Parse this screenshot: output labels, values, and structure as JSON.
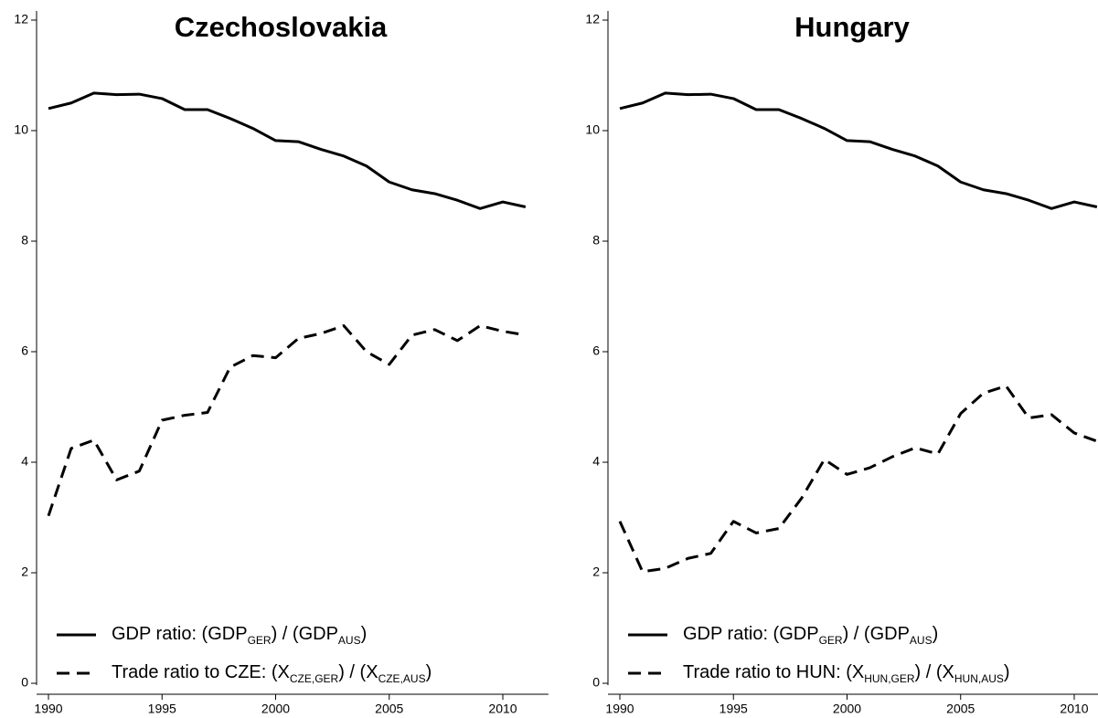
{
  "chart_data": [
    {
      "type": "line",
      "title": "Czechoslovakia",
      "x": [
        1990,
        1991,
        1992,
        1993,
        1994,
        1995,
        1996,
        1997,
        1998,
        1999,
        2000,
        2001,
        2002,
        2003,
        2004,
        2005,
        2006,
        2007,
        2008,
        2009,
        2010,
        2011
      ],
      "series": [
        {
          "name": "GDP ratio:  (GDP_{GER}) / (GDP_{AUS})",
          "color": "#000000",
          "dash": "solid",
          "values": [
            10.4,
            10.5,
            10.68,
            10.65,
            10.66,
            10.58,
            10.38,
            10.38,
            10.22,
            10.04,
            9.82,
            9.8,
            9.66,
            9.54,
            9.36,
            9.07,
            8.93,
            8.86,
            8.74,
            8.59,
            8.71,
            8.62
          ]
        },
        {
          "name": "Trade ratio to CZE:  (X_{CZE,GER}) / (X_{CZE,AUS})",
          "color": "#000000",
          "dash": "dashed",
          "values": [
            3.03,
            4.25,
            4.4,
            3.68,
            3.84,
            4.76,
            4.85,
            4.9,
            5.72,
            5.93,
            5.89,
            6.24,
            6.33,
            6.47,
            6.0,
            5.77,
            6.3,
            6.4,
            6.2,
            6.47,
            6.37,
            6.3
          ]
        }
      ],
      "xlim": [
        1990,
        2011
      ],
      "xticks": [
        1990,
        1995,
        2000,
        2005,
        2010
      ],
      "ylim": [
        0,
        12
      ],
      "yticks": [
        0,
        2,
        4,
        6,
        8,
        10,
        12
      ],
      "legend": "lower left"
    },
    {
      "type": "line",
      "title": "Hungary",
      "x": [
        1990,
        1991,
        1992,
        1993,
        1994,
        1995,
        1996,
        1997,
        1998,
        1999,
        2000,
        2001,
        2002,
        2003,
        2004,
        2005,
        2006,
        2007,
        2008,
        2009,
        2010,
        2011
      ],
      "series": [
        {
          "name": "GDP ratio:  (GDP_{GER}) / (GDP_{AUS})",
          "color": "#000000",
          "dash": "solid",
          "values": [
            10.4,
            10.5,
            10.68,
            10.65,
            10.66,
            10.58,
            10.38,
            10.38,
            10.22,
            10.04,
            9.82,
            9.8,
            9.66,
            9.54,
            9.36,
            9.07,
            8.93,
            8.86,
            8.74,
            8.59,
            8.71,
            8.62
          ]
        },
        {
          "name": "Trade ratio to HUN:  (X_{HUN,GER}) / (X_{HUN,AUS})",
          "color": "#000000",
          "dash": "dashed",
          "values": [
            2.93,
            2.02,
            2.08,
            2.26,
            2.35,
            2.93,
            2.72,
            2.8,
            3.35,
            4.05,
            3.78,
            3.9,
            4.1,
            4.26,
            4.15,
            4.88,
            5.25,
            5.38,
            4.8,
            4.86,
            4.53,
            4.38
          ]
        }
      ],
      "xlim": [
        1990,
        2011
      ],
      "xticks": [
        1990,
        1995,
        2000,
        2005,
        2010
      ],
      "ylim": [
        0,
        12
      ],
      "yticks": [
        0,
        2,
        4,
        6,
        8,
        10,
        12
      ],
      "legend": "lower left"
    }
  ]
}
